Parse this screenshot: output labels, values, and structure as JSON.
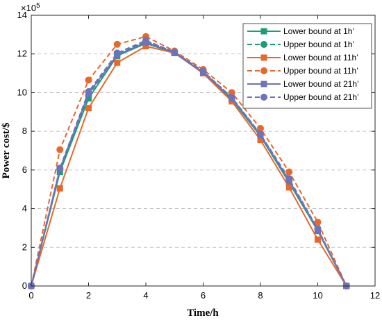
{
  "chart_data": {
    "type": "line",
    "xlabel": "Time/h",
    "ylabel": "Power cost/$",
    "xlim": [
      0,
      12
    ],
    "ylim": [
      0,
      14
    ],
    "xticks": [
      0,
      2,
      4,
      6,
      8,
      10,
      12
    ],
    "yticks": [
      0,
      2,
      4,
      6,
      8,
      10,
      12,
      14
    ],
    "y_multiplier_base": "×10",
    "y_multiplier_exp": "5",
    "grid": "horizontal dashed",
    "legend_position": "top-right",
    "x": [
      0,
      1,
      2,
      3,
      4,
      5,
      6,
      7,
      8,
      9,
      10,
      11
    ],
    "series": [
      {
        "name": "Lower bound at 1h’",
        "color": "#1a9e77",
        "line": "solid",
        "marker": "square",
        "values": [
          0,
          5.9,
          9.7,
          11.9,
          12.55,
          12.05,
          11.05,
          9.65,
          7.75,
          5.35,
          2.85,
          0
        ]
      },
      {
        "name": "Upper bound at 1h’",
        "color": "#1a9e77",
        "line": "dashed",
        "marker": "circle",
        "values": [
          0,
          6.05,
          9.85,
          12.0,
          12.65,
          12.1,
          11.1,
          9.75,
          7.85,
          5.45,
          2.95,
          0
        ]
      },
      {
        "name": "Lower bound at 11h’",
        "color": "#e8672a",
        "line": "solid",
        "marker": "square",
        "values": [
          0,
          5.05,
          9.2,
          11.55,
          12.4,
          12.05,
          11.0,
          9.55,
          7.55,
          5.1,
          2.4,
          0
        ]
      },
      {
        "name": "Upper bound at 11h’",
        "color": "#e8672a",
        "line": "dashed",
        "marker": "circle",
        "values": [
          0,
          7.05,
          10.65,
          12.5,
          12.9,
          12.15,
          11.2,
          10.0,
          8.15,
          5.9,
          3.3,
          0
        ]
      },
      {
        "name": "Lower bound at 21h’",
        "color": "#6c72bb",
        "line": "solid",
        "marker": "square",
        "values": [
          0,
          6.05,
          9.95,
          11.95,
          12.6,
          12.05,
          11.05,
          9.7,
          7.8,
          5.45,
          2.9,
          0
        ]
      },
      {
        "name": "Upper bound at 21h’",
        "color": "#6c72bb",
        "line": "dashed",
        "marker": "circle",
        "values": [
          0,
          6.1,
          10.05,
          12.05,
          12.7,
          12.1,
          11.1,
          9.75,
          7.85,
          5.55,
          2.95,
          0
        ]
      }
    ]
  }
}
